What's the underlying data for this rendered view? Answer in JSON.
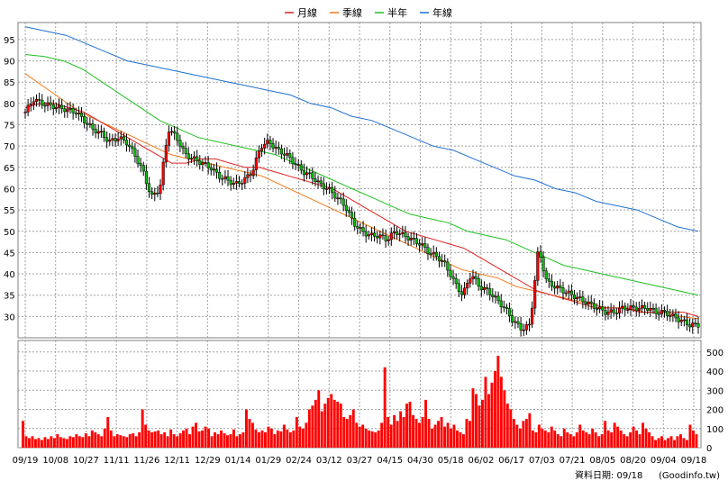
{
  "chart_data": [
    {
      "type": "candlestick",
      "legend": [
        {
          "name": "月線",
          "color": "#e02020"
        },
        {
          "name": "季線",
          "color": "#f07818"
        },
        {
          "name": "半年",
          "color": "#20c020"
        },
        {
          "name": "年線",
          "color": "#1f6fcf"
        }
      ],
      "y_ticks": [
        30,
        35,
        40,
        45,
        50,
        55,
        60,
        65,
        70,
        75,
        80,
        85,
        90,
        95
      ],
      "ylim": [
        25,
        99
      ],
      "x_ticks": [
        "09/19",
        "10/08",
        "10/27",
        "11/11",
        "11/26",
        "12/11",
        "12/29",
        "01/14",
        "01/29",
        "02/24",
        "03/12",
        "03/27",
        "04/15",
        "04/30",
        "05/18",
        "06/02",
        "06/17",
        "07/03",
        "07/21",
        "08/05",
        "08/20",
        "09/04",
        "09/18"
      ],
      "grid": true,
      "close_anchors": [
        78,
        81,
        80,
        79.5,
        79,
        78.5,
        78,
        76,
        74,
        73,
        71,
        72,
        71,
        68,
        64,
        58,
        60,
        74,
        72,
        68,
        67,
        66,
        65,
        63,
        62,
        61,
        62,
        64,
        70,
        71,
        69,
        68,
        66,
        64,
        63,
        61,
        60,
        58,
        56,
        52,
        50,
        49,
        49,
        48,
        50,
        49,
        48,
        47,
        45,
        44,
        42,
        38,
        35,
        40,
        37,
        36,
        34,
        32,
        29,
        27,
        28,
        46,
        38,
        37,
        36,
        35,
        34,
        33,
        32,
        31,
        31,
        32,
        32,
        32,
        32,
        31,
        31,
        30,
        29,
        28,
        28
      ],
      "ma_month": [
        79,
        80,
        80,
        79,
        78,
        76,
        74,
        72,
        70,
        68,
        66,
        66,
        67,
        67,
        66,
        65,
        65,
        64,
        63,
        62,
        61,
        60,
        58,
        56,
        54,
        52,
        50,
        49,
        48,
        47,
        46,
        44,
        42,
        40,
        38,
        36,
        35,
        34,
        33,
        32,
        32,
        32,
        31,
        31,
        31,
        31,
        30
      ],
      "ma_quarter": [
        87,
        84,
        81,
        78,
        76,
        74,
        72,
        70,
        68,
        67,
        66,
        65,
        64,
        63,
        61,
        59,
        57,
        55,
        53,
        51,
        49,
        47,
        45,
        43,
        41,
        40,
        39,
        37,
        36,
        35,
        34,
        33,
        32,
        32,
        31,
        31,
        30,
        29.5
      ],
      "ma_half": [
        91.5,
        91,
        90,
        88,
        85,
        82,
        79,
        76,
        74,
        72,
        71,
        70,
        69,
        68,
        66,
        64,
        62,
        60,
        58,
        56,
        54,
        53,
        52,
        50,
        49,
        48,
        46,
        44,
        42,
        41,
        40,
        39,
        38,
        37,
        36,
        35
      ],
      "ma_year": [
        98,
        97,
        96,
        94,
        92,
        90,
        89,
        88,
        87,
        86,
        85,
        84,
        83,
        82,
        80,
        79,
        77,
        76,
        74,
        72,
        70,
        69,
        67,
        65,
        63,
        62,
        60,
        59,
        57,
        56,
        55,
        53,
        51,
        50
      ]
    },
    {
      "type": "bar",
      "y_ticks": [
        0,
        100,
        200,
        300,
        400,
        500
      ],
      "ylim": [
        0,
        560
      ],
      "color": "#ff0000",
      "values": [
        140,
        60,
        50,
        60,
        45,
        50,
        40,
        55,
        45,
        60,
        50,
        70,
        55,
        50,
        45,
        60,
        55,
        70,
        60,
        55,
        75,
        60,
        90,
        80,
        70,
        60,
        100,
        160,
        90,
        60,
        70,
        65,
        60,
        55,
        70,
        75,
        60,
        80,
        200,
        120,
        90,
        80,
        85,
        90,
        70,
        80,
        60,
        95,
        70,
        60,
        75,
        90,
        100,
        70,
        110,
        130,
        85,
        90,
        110,
        100,
        60,
        80,
        70,
        90,
        75,
        65,
        70,
        95,
        60,
        70,
        80,
        200,
        150,
        130,
        95,
        80,
        90,
        80,
        110,
        100,
        70,
        90,
        85,
        120,
        95,
        80,
        90,
        160,
        110,
        100,
        130,
        200,
        220,
        250,
        300,
        190,
        230,
        260,
        280,
        250,
        240,
        230,
        160,
        150,
        170,
        200,
        130,
        110,
        120,
        100,
        90,
        85,
        80,
        90,
        130,
        420,
        160,
        120,
        170,
        140,
        190,
        160,
        230,
        240,
        170,
        150,
        130,
        160,
        250,
        150,
        100,
        120,
        140,
        160,
        110,
        130,
        100,
        120,
        90,
        80,
        70,
        150,
        140,
        310,
        280,
        220,
        250,
        370,
        280,
        340,
        400,
        480,
        370,
        300,
        230,
        200,
        150,
        120,
        100,
        140,
        150,
        180,
        90,
        80,
        120,
        100,
        90,
        80,
        110,
        90,
        70,
        60,
        100,
        80,
        70,
        60,
        80,
        120,
        90,
        80,
        70,
        100,
        80,
        60,
        70,
        140,
        90,
        80,
        130,
        110,
        90,
        70,
        60,
        80,
        110,
        90,
        70,
        130,
        100,
        80,
        60,
        40,
        50,
        60,
        40,
        50,
        60,
        40,
        60,
        70,
        50,
        40,
        120,
        90,
        70
      ]
    }
  ],
  "footer": {
    "date_label": "資料日期: 09/18",
    "site_label": "(Goodinfo.tw)"
  }
}
